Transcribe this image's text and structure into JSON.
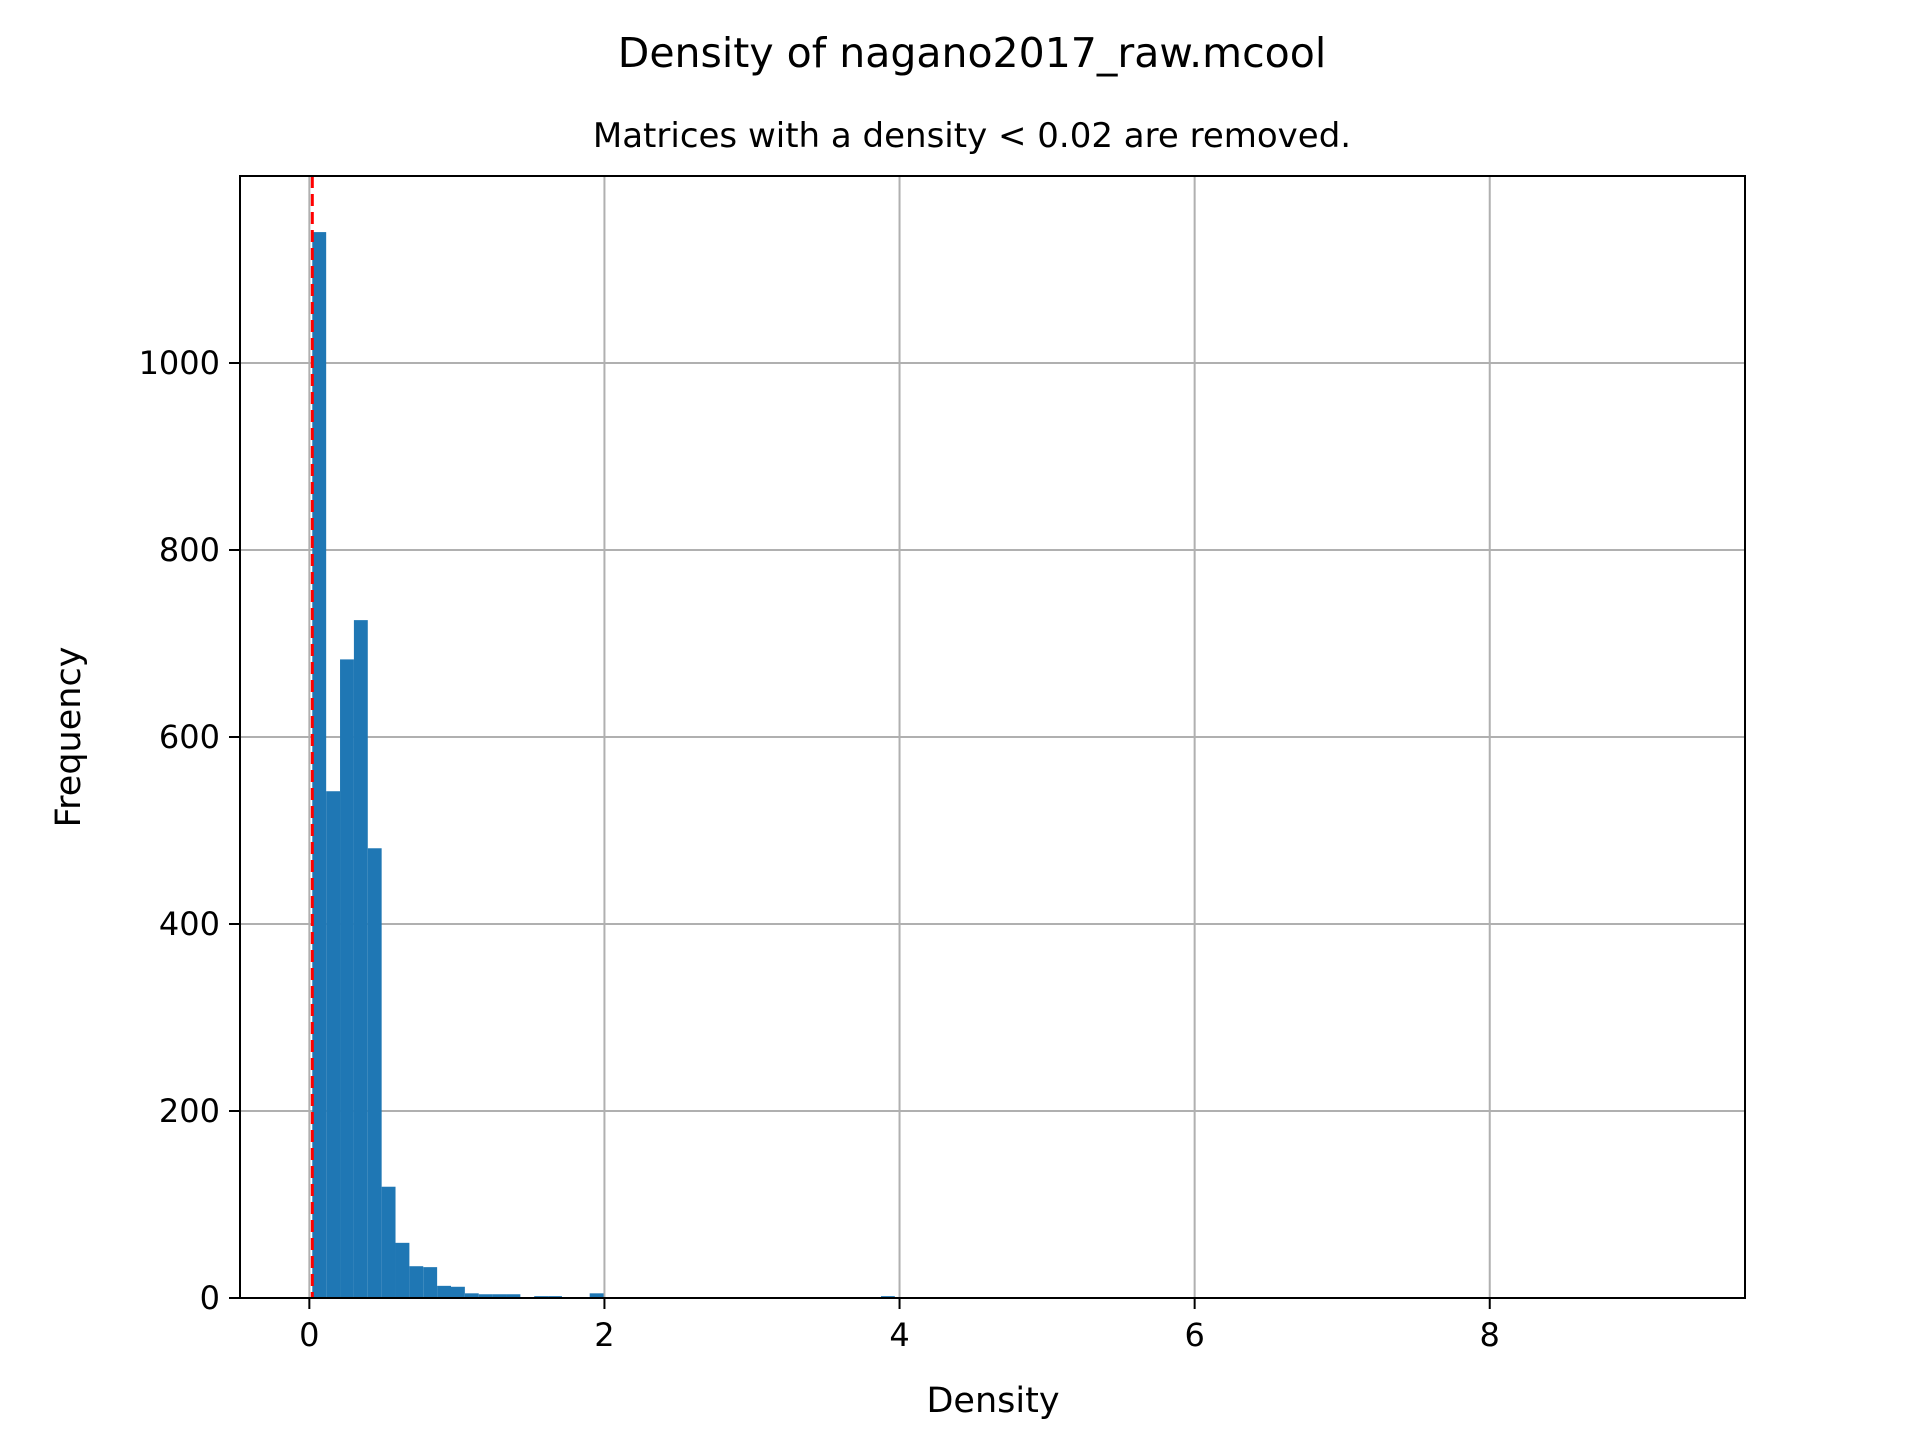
{
  "chart_data": {
    "type": "bar",
    "title": "Density of nagano2017_raw.mcool",
    "subtitle": "Matrices with a density < 0.02 are removed.",
    "xlabel": "Density",
    "ylabel": "Frequency",
    "xlim": [
      -0.47,
      9.73
    ],
    "ylim": [
      0,
      1200
    ],
    "x_ticks": [
      0,
      2,
      4,
      6,
      8
    ],
    "y_ticks": [
      0,
      200,
      400,
      600,
      800,
      1000
    ],
    "grid": true,
    "bar_color": "#1f77b4",
    "threshold": {
      "value": 0.02,
      "color": "#ff0000",
      "style": "dashed"
    },
    "bin_width": 0.094,
    "bins": [
      {
        "x0": 0.02,
        "count": 1140
      },
      {
        "x0": 0.114,
        "count": 542
      },
      {
        "x0": 0.208,
        "count": 683
      },
      {
        "x0": 0.302,
        "count": 725
      },
      {
        "x0": 0.396,
        "count": 481
      },
      {
        "x0": 0.49,
        "count": 119
      },
      {
        "x0": 0.584,
        "count": 59
      },
      {
        "x0": 0.678,
        "count": 34
      },
      {
        "x0": 0.772,
        "count": 33
      },
      {
        "x0": 0.866,
        "count": 13
      },
      {
        "x0": 0.96,
        "count": 12
      },
      {
        "x0": 1.054,
        "count": 5
      },
      {
        "x0": 1.148,
        "count": 4
      },
      {
        "x0": 1.242,
        "count": 4
      },
      {
        "x0": 1.336,
        "count": 4
      },
      {
        "x0": 1.43,
        "count": 1
      },
      {
        "x0": 1.524,
        "count": 2
      },
      {
        "x0": 1.618,
        "count": 2
      },
      {
        "x0": 1.712,
        "count": 1
      },
      {
        "x0": 1.806,
        "count": 1
      },
      {
        "x0": 1.9,
        "count": 5
      },
      {
        "x0": 2.276,
        "count": 1
      },
      {
        "x0": 2.652,
        "count": 1
      },
      {
        "x0": 3.874,
        "count": 2
      },
      {
        "x0": 9.138,
        "count": 1
      }
    ]
  }
}
